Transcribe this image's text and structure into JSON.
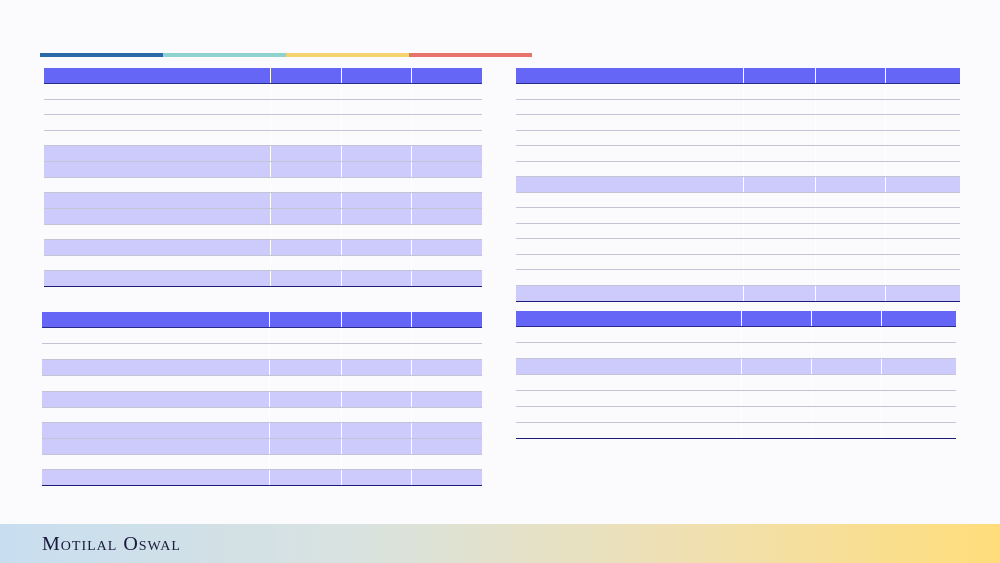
{
  "colors": {
    "accent_segments": [
      "#2a69a8",
      "#8fd2cf",
      "#f4d36e",
      "#e8736c"
    ],
    "header_fill": "#6666f6",
    "highlight_row": "#cccbfc"
  },
  "brand": {
    "name": "Motilal Oswal"
  },
  "tables": {
    "t1": {
      "header": [
        "",
        "",
        "",
        ""
      ],
      "rows": [
        {
          "hl": false,
          "cells": [
            "",
            "",
            "",
            ""
          ]
        },
        {
          "hl": false,
          "cells": [
            "",
            "",
            "",
            ""
          ]
        },
        {
          "hl": false,
          "cells": [
            "",
            "",
            "",
            ""
          ]
        },
        {
          "hl": false,
          "cells": [
            "",
            "",
            "",
            ""
          ]
        },
        {
          "hl": true,
          "cells": [
            "",
            "",
            "",
            ""
          ]
        },
        {
          "hl": true,
          "cells": [
            "",
            "",
            "",
            ""
          ]
        },
        {
          "hl": false,
          "cells": [
            "",
            "",
            "",
            ""
          ]
        },
        {
          "hl": true,
          "cells": [
            "",
            "",
            "",
            ""
          ]
        },
        {
          "hl": true,
          "cells": [
            "",
            "",
            "",
            ""
          ]
        },
        {
          "hl": false,
          "cells": [
            "",
            "",
            "",
            ""
          ]
        },
        {
          "hl": true,
          "cells": [
            "",
            "",
            "",
            ""
          ]
        },
        {
          "hl": false,
          "cells": [
            "",
            "",
            "",
            ""
          ]
        },
        {
          "hl": true,
          "cells": [
            "",
            "",
            "",
            ""
          ]
        }
      ]
    },
    "t2": {
      "header": [
        "",
        "",
        "",
        ""
      ],
      "rows": [
        {
          "hl": false,
          "cells": [
            "",
            "",
            "",
            ""
          ]
        },
        {
          "hl": false,
          "cells": [
            "",
            "",
            "",
            ""
          ]
        },
        {
          "hl": false,
          "cells": [
            "",
            "",
            "",
            ""
          ]
        },
        {
          "hl": false,
          "cells": [
            "",
            "",
            "",
            ""
          ]
        },
        {
          "hl": false,
          "cells": [
            "",
            "",
            "",
            ""
          ]
        },
        {
          "hl": false,
          "cells": [
            "",
            "",
            "",
            ""
          ]
        },
        {
          "hl": true,
          "cells": [
            "",
            "",
            "",
            ""
          ]
        },
        {
          "hl": false,
          "cells": [
            "",
            "",
            "",
            ""
          ]
        },
        {
          "hl": false,
          "cells": [
            "",
            "",
            "",
            ""
          ]
        },
        {
          "hl": false,
          "cells": [
            "",
            "",
            "",
            ""
          ]
        },
        {
          "hl": false,
          "cells": [
            "",
            "",
            "",
            ""
          ]
        },
        {
          "hl": false,
          "cells": [
            "",
            "",
            "",
            ""
          ]
        },
        {
          "hl": false,
          "cells": [
            "",
            "",
            "",
            ""
          ]
        },
        {
          "hl": true,
          "cells": [
            "",
            "",
            "",
            ""
          ]
        }
      ]
    },
    "t3": {
      "header": [
        "",
        "",
        "",
        ""
      ],
      "rows": [
        {
          "hl": false,
          "cells": [
            "",
            "",
            "",
            ""
          ]
        },
        {
          "hl": false,
          "cells": [
            "",
            "",
            "",
            ""
          ]
        },
        {
          "hl": true,
          "cells": [
            "",
            "",
            "",
            ""
          ]
        },
        {
          "hl": false,
          "cells": [
            "",
            "",
            "",
            ""
          ]
        },
        {
          "hl": true,
          "cells": [
            "",
            "",
            "",
            ""
          ]
        },
        {
          "hl": false,
          "cells": [
            "",
            "",
            "",
            ""
          ]
        },
        {
          "hl": true,
          "cells": [
            "",
            "",
            "",
            ""
          ]
        },
        {
          "hl": true,
          "cells": [
            "",
            "",
            "",
            ""
          ]
        },
        {
          "hl": false,
          "cells": [
            "",
            "",
            "",
            ""
          ]
        },
        {
          "hl": true,
          "cells": [
            "",
            "",
            "",
            ""
          ]
        }
      ]
    },
    "t4": {
      "header": [
        "",
        "",
        "",
        ""
      ],
      "rows": [
        {
          "hl": false,
          "cells": [
            "",
            "",
            "",
            ""
          ]
        },
        {
          "hl": false,
          "cells": [
            "",
            "",
            "",
            ""
          ]
        },
        {
          "hl": true,
          "cells": [
            "",
            "",
            "",
            ""
          ]
        },
        {
          "hl": false,
          "cells": [
            "",
            "",
            "",
            ""
          ]
        },
        {
          "hl": false,
          "cells": [
            "",
            "",
            "",
            ""
          ]
        },
        {
          "hl": false,
          "cells": [
            "",
            "",
            "",
            ""
          ]
        },
        {
          "hl": false,
          "cells": [
            "",
            "",
            "",
            ""
          ]
        }
      ]
    }
  }
}
